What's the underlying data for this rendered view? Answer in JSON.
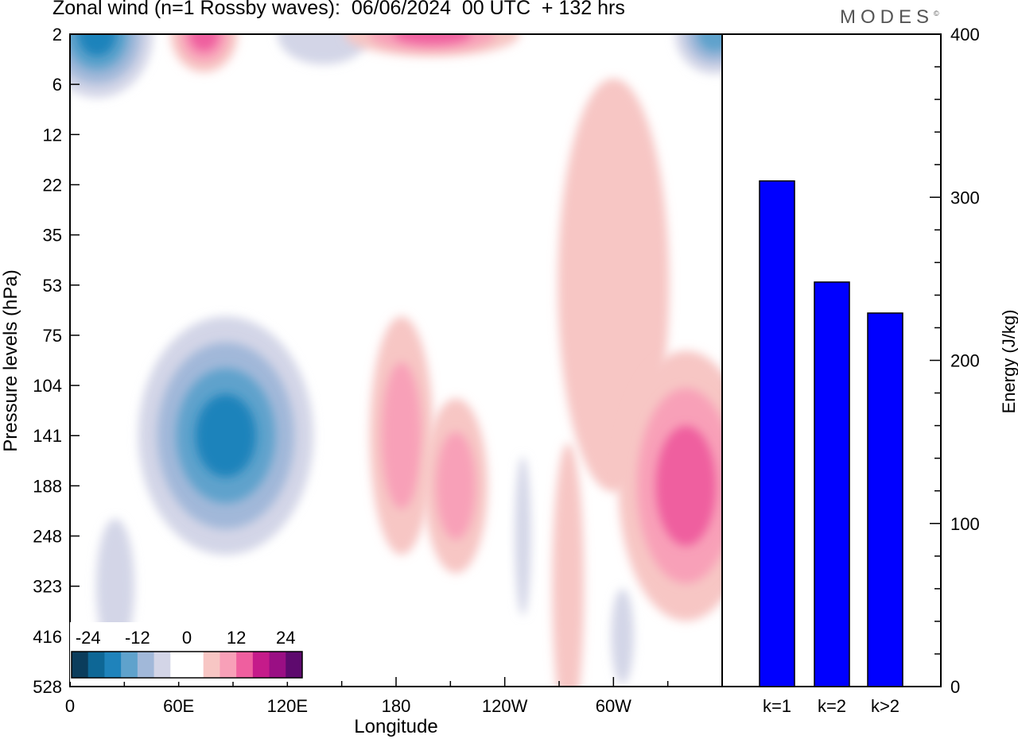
{
  "header": {
    "title": "Zonal wind (n=1 Rossby waves):  06/06/2024  00 UTC  + 132 hrs",
    "brand": "MODES"
  },
  "chart_data": [
    {
      "type": "heatmap",
      "title": "Zonal wind (n=1 Rossby waves):  06/06/2024  00 UTC  + 132 hrs",
      "xlabel": "Longitude",
      "ylabel": "Pressure levels (hPa)",
      "x_ticks": [
        "0",
        "60E",
        "120E",
        "180",
        "120W",
        "60W"
      ],
      "y_ticks": [
        "2",
        "6",
        "12",
        "22",
        "35",
        "53",
        "75",
        "104",
        "141",
        "188",
        "248",
        "323",
        "416",
        "528"
      ],
      "colorbar": {
        "labels": [
          "-24",
          "-12",
          "0",
          "12",
          "24"
        ],
        "colors": [
          "#0b3d5c",
          "#0e6796",
          "#1f83bb",
          "#5fa2cc",
          "#a1b8d9",
          "#d3d5e7",
          "#ffffff",
          "#ffffff",
          "#f7c6c4",
          "#f8a0b8",
          "#ef5f9f",
          "#c51b8a",
          "#9a0f84",
          "#5e0a6e"
        ]
      },
      "regions": [
        {
          "sign": "negative",
          "levels": 4,
          "peak_lon": 15,
          "peak_level": "2",
          "min": -22
        },
        {
          "sign": "positive",
          "levels": 3,
          "peak_lon": 74,
          "peak_level": "4",
          "max": 18
        },
        {
          "sign": "negative",
          "levels": 1,
          "peak_lon": 140,
          "peak_level": "4",
          "min": -4
        },
        {
          "sign": "positive",
          "levels": 3,
          "peak_lon": 200,
          "peak_level": "2",
          "max": 14
        },
        {
          "sign": "negative",
          "levels": 3,
          "peak_lon": 356,
          "peak_level": "2",
          "min": -18
        },
        {
          "sign": "positive",
          "levels": 1,
          "peak_lon": 300,
          "peak_level": "53",
          "max": 6
        },
        {
          "sign": "negative",
          "levels": 4,
          "peak_lon": 86,
          "peak_level": "141",
          "min": -22
        },
        {
          "sign": "positive",
          "levels": 2,
          "peak_lon": 183,
          "peak_level": "141",
          "max": 10
        },
        {
          "sign": "positive",
          "levels": 2,
          "peak_lon": 213,
          "peak_level": "188",
          "max": 10
        },
        {
          "sign": "positive",
          "levels": 3,
          "peak_lon": 340,
          "peak_level": "188",
          "max": 18
        },
        {
          "sign": "negative",
          "levels": 1,
          "peak_lon": 25,
          "peak_level": "323",
          "min": -4
        },
        {
          "sign": "negative",
          "levels": 1,
          "peak_lon": 250,
          "peak_level": "248",
          "min": -4
        },
        {
          "sign": "positive",
          "levels": 1,
          "peak_lon": 275,
          "peak_level": "323",
          "max": 6
        },
        {
          "sign": "negative",
          "levels": 1,
          "peak_lon": 305,
          "peak_level": "416",
          "min": -4
        }
      ]
    },
    {
      "type": "bar",
      "ylabel": "Energy (J/kg)",
      "categories": [
        "k=1",
        "k=2",
        "k>2"
      ],
      "values": [
        310,
        248,
        229
      ],
      "ylim": [
        0,
        400
      ],
      "y_ticks": [
        0,
        100,
        200,
        300,
        400
      ],
      "bar_color": "#0000ff"
    }
  ]
}
